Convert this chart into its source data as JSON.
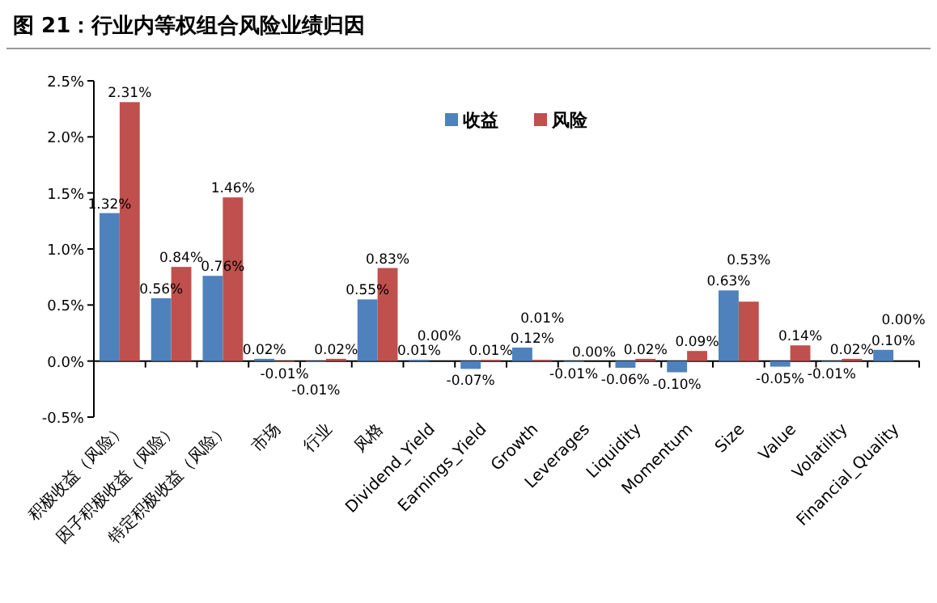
{
  "chart_data": {
    "type": "bar",
    "title": "图 21：行业内等权组合风险业绩归因",
    "categories": [
      "积极收益（风险）",
      "因子积极收益（风险）",
      "特定积极收益（风险）",
      "市场",
      "行业",
      "风格",
      "Dividend_Yield",
      "Earnings_Yield",
      "Growth",
      "Leverages",
      "Liquidity",
      "Momentum",
      "Size",
      "Value",
      "Volatility",
      "Financial_Quality"
    ],
    "series": [
      {
        "name": "收益",
        "color": "#4f81bd",
        "values": [
          1.32,
          0.56,
          0.76,
          0.02,
          -0.01,
          0.55,
          0.01,
          -0.07,
          0.12,
          -0.01,
          -0.06,
          -0.1,
          0.63,
          -0.05,
          -0.01,
          0.1
        ],
        "value_labels": [
          "1.32%",
          "0.56%",
          "0.76%",
          "0.02%",
          "-0.01%",
          "0.55%",
          "0.01%",
          "-0.07%",
          "0.12%",
          "-0.01%",
          "-0.06%",
          "-0.10%",
          "0.63%",
          "-0.05%",
          "-0.01%",
          "0.10%"
        ]
      },
      {
        "name": "风险",
        "color": "#c0504d",
        "values": [
          2.31,
          0.84,
          1.46,
          -0.01,
          0.02,
          0.83,
          0.0,
          0.01,
          0.01,
          0.0,
          0.02,
          0.09,
          0.53,
          0.14,
          0.02,
          0.0
        ],
        "value_labels": [
          "2.31%",
          "0.84%",
          "1.46%",
          "-0.01%",
          "0.02%",
          "0.83%",
          "0.00%",
          "0.01%",
          "0.01%",
          "0.00%",
          "0.02%",
          "0.09%",
          "0.53%",
          "0.14%",
          "0.02%",
          "0.00%"
        ]
      }
    ],
    "ylim": [
      -0.5,
      2.5
    ],
    "yticks": [
      {
        "value": -0.5,
        "label": "-0.5%"
      },
      {
        "value": 0,
        "label": "0.0%"
      },
      {
        "value": 0.5,
        "label": "0.5%"
      },
      {
        "value": 1,
        "label": "1.0%"
      },
      {
        "value": 1.5,
        "label": "1.5%"
      },
      {
        "value": 2,
        "label": "2.0%"
      },
      {
        "value": 2.5,
        "label": "2.5%"
      }
    ],
    "legend": "top right"
  }
}
